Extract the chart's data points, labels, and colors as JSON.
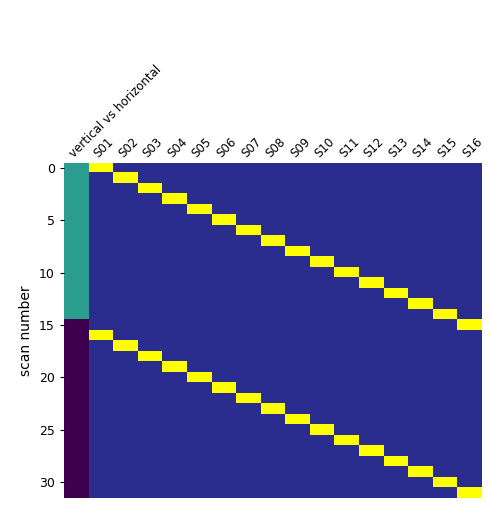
{
  "n_rows": 32,
  "n_cols": 17,
  "col_labels": [
    "vertical vs horizontal",
    "S01",
    "S02",
    "S03",
    "S04",
    "S05",
    "S06",
    "S07",
    "S08",
    "S09",
    "S10",
    "S11",
    "S12",
    "S13",
    "S14",
    "S15",
    "S16"
  ],
  "ylabel": "scan number",
  "yticks": [
    0,
    5,
    10,
    15,
    20,
    25,
    30
  ],
  "color_teal": "#2a9d8f",
  "color_purple": "#3d004f",
  "color_blue": "#2b2d8e",
  "color_yellow": "#ffff00",
  "teal_rows": [
    0,
    14
  ],
  "purple_rows": [
    15,
    31
  ],
  "diagonal1_row_range": [
    0,
    15
  ],
  "diagonal2_row_range": [
    16,
    31
  ],
  "figsize": [
    4.91,
    5.08
  ],
  "dpi": 100
}
